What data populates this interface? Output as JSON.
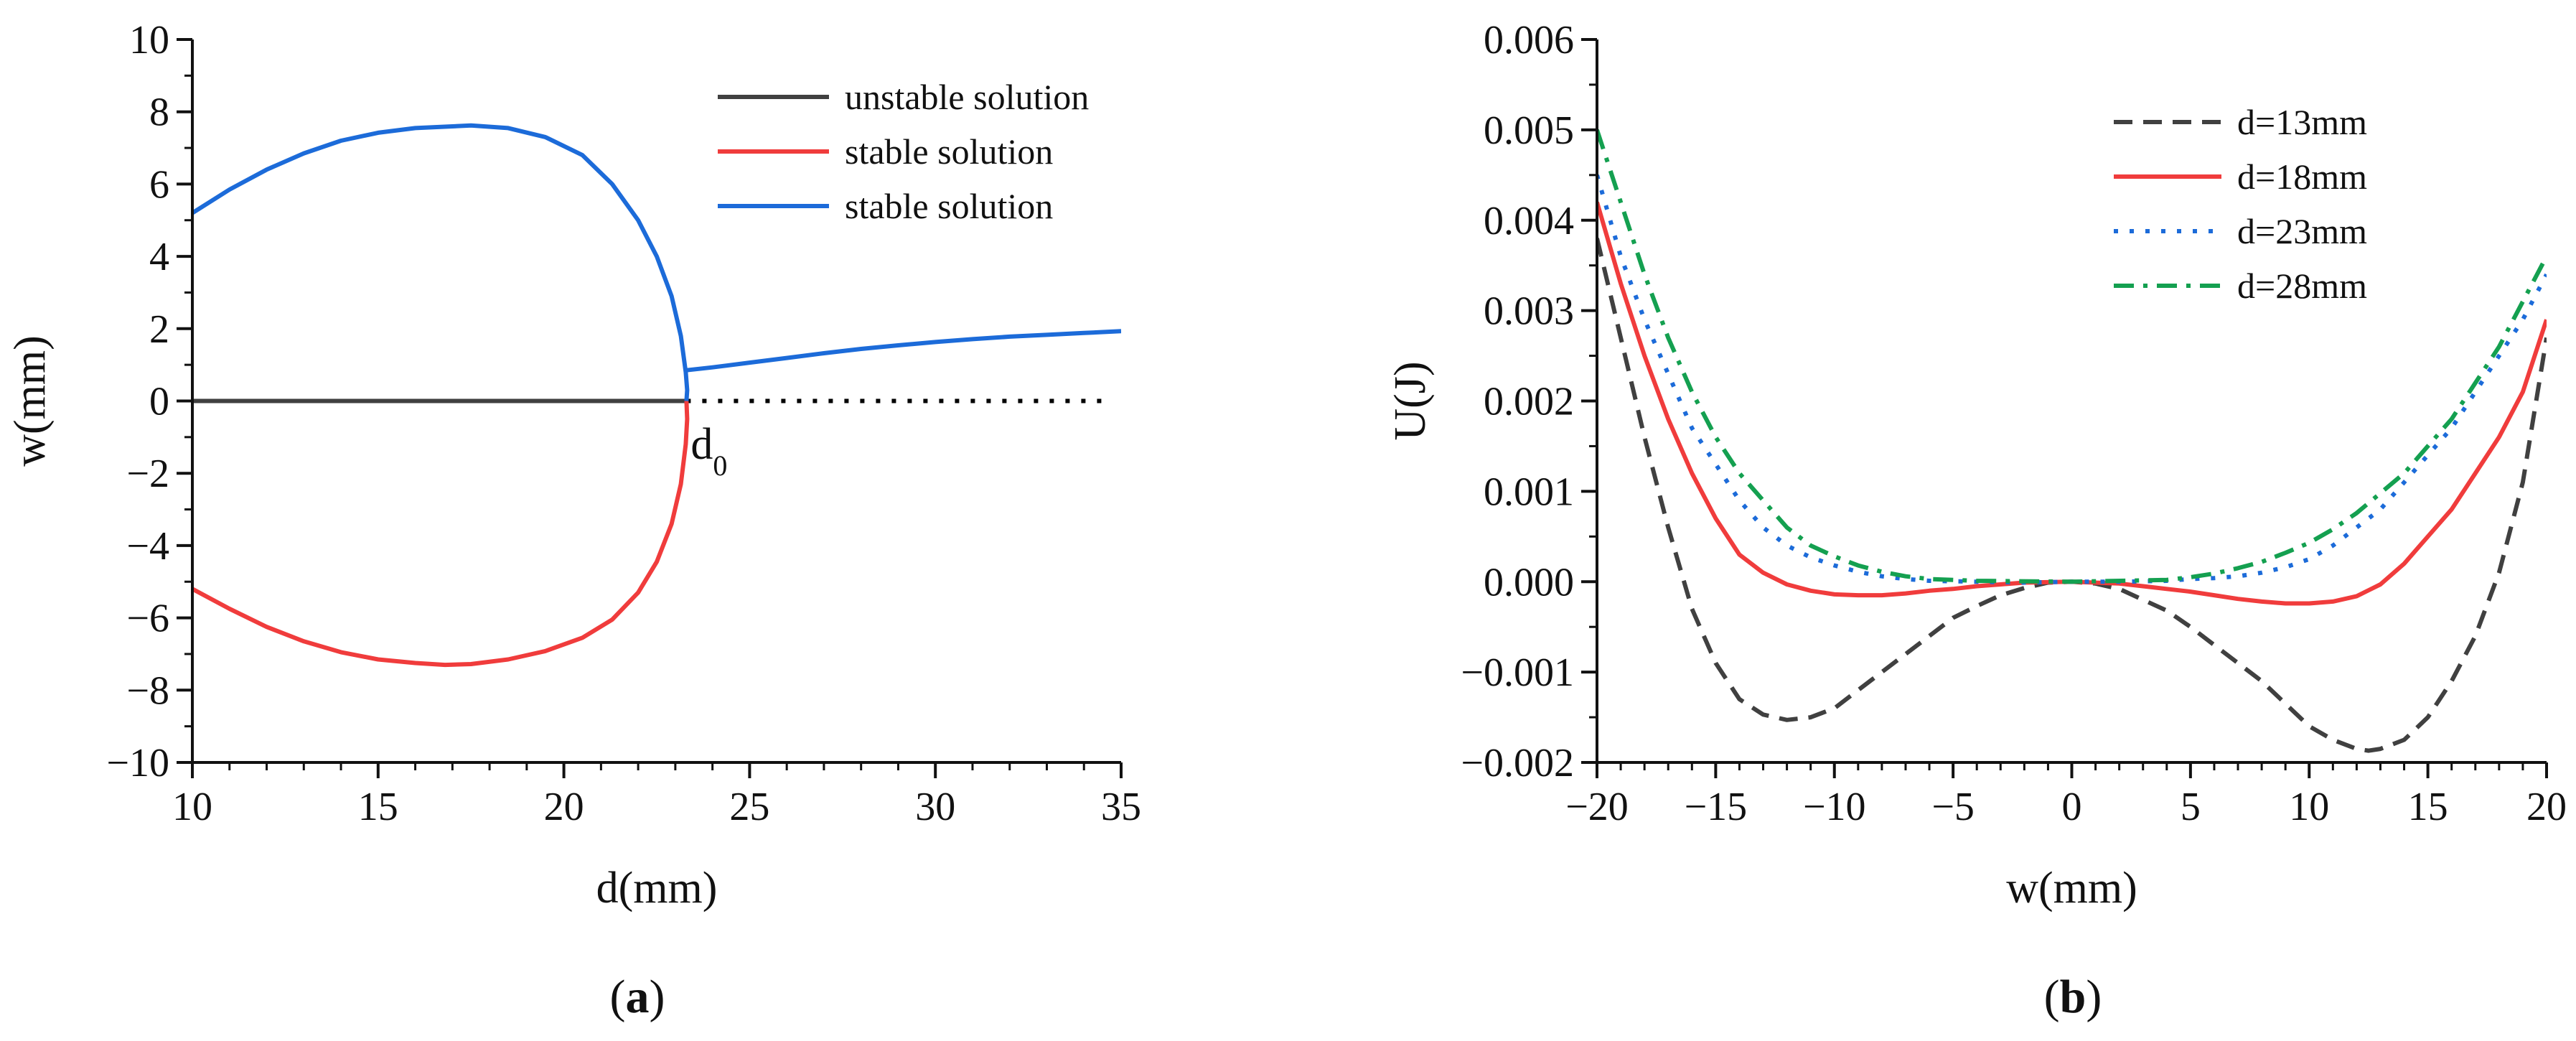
{
  "figure": {
    "panel_a_open": "(",
    "panel_a_letter": "a",
    "panel_a_close": ")",
    "panel_b_open": "(",
    "panel_b_letter": "b",
    "panel_b_close": ")"
  },
  "chart_data": [
    {
      "id": "a",
      "type": "line",
      "title": "",
      "xlabel": "d(mm)",
      "ylabel": "w(mm)",
      "xlim": [
        10,
        35
      ],
      "ylim": [
        -10,
        10
      ],
      "xticks": [
        10,
        15,
        20,
        25,
        30,
        35
      ],
      "yticks": [
        -10,
        -8,
        -6,
        -4,
        -2,
        0,
        2,
        4,
        6,
        8,
        10
      ],
      "grid": false,
      "legend_position": "top-right",
      "annotation": {
        "text": "d",
        "subscript": "0",
        "x": 23.3,
        "y": -1.2
      },
      "series": [
        {
          "name": "unstable solution",
          "color": "#404040",
          "style": "solid",
          "points": [
            [
              10,
              0
            ],
            [
              23.3,
              0
            ]
          ]
        },
        {
          "name": "",
          "color": "#000000",
          "style": "dotted",
          "points": [
            [
              23.3,
              0
            ],
            [
              34.6,
              0
            ]
          ]
        },
        {
          "name": "stable solution",
          "color": "#f03c3c",
          "style": "solid",
          "points": [
            [
              10,
              -5.2
            ],
            [
              11,
              -5.75
            ],
            [
              12,
              -6.25
            ],
            [
              13,
              -6.65
            ],
            [
              14,
              -6.95
            ],
            [
              15,
              -7.15
            ],
            [
              16,
              -7.25
            ],
            [
              16.8,
              -7.3
            ],
            [
              17.5,
              -7.28
            ],
            [
              18.5,
              -7.15
            ],
            [
              19.5,
              -6.92
            ],
            [
              20.5,
              -6.55
            ],
            [
              21.3,
              -6.05
            ],
            [
              22,
              -5.3
            ],
            [
              22.5,
              -4.45
            ],
            [
              22.9,
              -3.4
            ],
            [
              23.15,
              -2.3
            ],
            [
              23.28,
              -1.2
            ],
            [
              23.32,
              -0.5
            ],
            [
              23.3,
              0
            ]
          ]
        },
        {
          "name": "stable solution",
          "color": "#1c6bd9",
          "style": "solid",
          "points": [
            [
              10,
              5.2
            ],
            [
              11,
              5.85
            ],
            [
              12,
              6.4
            ],
            [
              13,
              6.85
            ],
            [
              14,
              7.2
            ],
            [
              15,
              7.42
            ],
            [
              16,
              7.55
            ],
            [
              17.5,
              7.62
            ],
            [
              18.5,
              7.55
            ],
            [
              19.5,
              7.3
            ],
            [
              20.5,
              6.8
            ],
            [
              21.3,
              6.0
            ],
            [
              22,
              5.0
            ],
            [
              22.5,
              4.0
            ],
            [
              22.9,
              2.9
            ],
            [
              23.15,
              1.8
            ],
            [
              23.28,
              0.8
            ],
            [
              23.32,
              0.3
            ],
            [
              23.3,
              0
            ]
          ]
        },
        {
          "name": "",
          "color": "#1c6bd9",
          "style": "solid",
          "points": [
            [
              23.3,
              0.85
            ],
            [
              24,
              0.93
            ],
            [
              25,
              1.06
            ],
            [
              26,
              1.19
            ],
            [
              27,
              1.32
            ],
            [
              28,
              1.44
            ],
            [
              29,
              1.54
            ],
            [
              30,
              1.63
            ],
            [
              31,
              1.71
            ],
            [
              32,
              1.78
            ],
            [
              33,
              1.83
            ],
            [
              34,
              1.88
            ],
            [
              35,
              1.93
            ]
          ]
        }
      ]
    },
    {
      "id": "b",
      "type": "line",
      "title": "",
      "xlabel": "w(mm)",
      "ylabel": "U(J)",
      "xlim": [
        -20,
        20
      ],
      "ylim": [
        -0.002,
        0.006
      ],
      "xticks": [
        -20,
        -15,
        -10,
        -5,
        0,
        5,
        10,
        15,
        20
      ],
      "yticks": [
        -0.002,
        -0.001,
        0.0,
        0.001,
        0.002,
        0.003,
        0.004,
        0.005,
        0.006
      ],
      "grid": false,
      "legend_position": "top-right",
      "series": [
        {
          "name": "d=13mm",
          "color": "#404040",
          "style": "dashed",
          "points": [
            [
              -20,
              0.0038
            ],
            [
              -19,
              0.0027
            ],
            [
              -18,
              0.0016
            ],
            [
              -17,
              0.0006
            ],
            [
              -16,
              -0.0003
            ],
            [
              -15,
              -0.0009
            ],
            [
              -14,
              -0.0013
            ],
            [
              -13,
              -0.00147
            ],
            [
              -12,
              -0.00153
            ],
            [
              -11,
              -0.0015
            ],
            [
              -10,
              -0.0014
            ],
            [
              -9,
              -0.0012
            ],
            [
              -8,
              -0.001
            ],
            [
              -7,
              -0.0008
            ],
            [
              -6,
              -0.0006
            ],
            [
              -5,
              -0.0004
            ],
            [
              -4,
              -0.00027
            ],
            [
              -3,
              -0.00015
            ],
            [
              -2,
              -7e-05
            ],
            [
              -1,
              -1e-05
            ],
            [
              0,
              0
            ],
            [
              1,
              -2e-05
            ],
            [
              2,
              -8e-05
            ],
            [
              3,
              -0.0002
            ],
            [
              4,
              -0.00032
            ],
            [
              5,
              -0.0005
            ],
            [
              6,
              -0.0007
            ],
            [
              7,
              -0.0009
            ],
            [
              8,
              -0.0011
            ],
            [
              9,
              -0.00135
            ],
            [
              10,
              -0.0016
            ],
            [
              11,
              -0.00175
            ],
            [
              12,
              -0.00185
            ],
            [
              12.5,
              -0.00187
            ],
            [
              13,
              -0.00185
            ],
            [
              14,
              -0.00175
            ],
            [
              15,
              -0.0015
            ],
            [
              16,
              -0.0011
            ],
            [
              17,
              -0.0006
            ],
            [
              18,
              0.0001
            ],
            [
              19,
              0.0011
            ],
            [
              20,
              0.0027
            ]
          ]
        },
        {
          "name": "d=18mm",
          "color": "#f03c3c",
          "style": "solid",
          "points": [
            [
              -20,
              0.0042
            ],
            [
              -19,
              0.0033
            ],
            [
              -18,
              0.0025
            ],
            [
              -17,
              0.0018
            ],
            [
              -16,
              0.0012
            ],
            [
              -15,
              0.0007
            ],
            [
              -14,
              0.0003
            ],
            [
              -13,
              0.0001
            ],
            [
              -12,
              -3e-05
            ],
            [
              -11,
              -0.0001
            ],
            [
              -10,
              -0.00014
            ],
            [
              -9,
              -0.00015
            ],
            [
              -8,
              -0.00015
            ],
            [
              -7,
              -0.00013
            ],
            [
              -6,
              -0.0001
            ],
            [
              -5,
              -8e-05
            ],
            [
              -4,
              -5e-05
            ],
            [
              -3,
              -3e-05
            ],
            [
              -2,
              -1e-05
            ],
            [
              0,
              0
            ],
            [
              2,
              -2e-05
            ],
            [
              3,
              -5e-05
            ],
            [
              4,
              -8e-05
            ],
            [
              5,
              -0.00011
            ],
            [
              6,
              -0.00015
            ],
            [
              7,
              -0.00019
            ],
            [
              8,
              -0.00022
            ],
            [
              9,
              -0.00024
            ],
            [
              10,
              -0.00024
            ],
            [
              11,
              -0.00022
            ],
            [
              12,
              -0.00016
            ],
            [
              13,
              -3e-05
            ],
            [
              14,
              0.0002
            ],
            [
              15,
              0.0005
            ],
            [
              16,
              0.0008
            ],
            [
              17,
              0.0012
            ],
            [
              18,
              0.0016
            ],
            [
              19,
              0.0021
            ],
            [
              20,
              0.0029
            ]
          ]
        },
        {
          "name": "d=23mm",
          "color": "#1c6bd9",
          "style": "dotted",
          "points": [
            [
              -20,
              0.0045
            ],
            [
              -19,
              0.0036
            ],
            [
              -18,
              0.0029
            ],
            [
              -17,
              0.0023
            ],
            [
              -16,
              0.0017
            ],
            [
              -15,
              0.0013
            ],
            [
              -14,
              0.0009
            ],
            [
              -13,
              0.0006
            ],
            [
              -12,
              0.0004
            ],
            [
              -11,
              0.00027
            ],
            [
              -10,
              0.00018
            ],
            [
              -9,
              0.00011
            ],
            [
              -8,
              6e-05
            ],
            [
              -7,
              3e-05
            ],
            [
              -6,
              1e-05
            ],
            [
              -4,
              0
            ],
            [
              -2,
              -1e-05
            ],
            [
              0,
              0
            ],
            [
              2,
              0
            ],
            [
              4,
              1e-05
            ],
            [
              5,
              3e-05
            ],
            [
              6,
              4e-05
            ],
            [
              7,
              6e-05
            ],
            [
              8,
              0.0001
            ],
            [
              9,
              0.00016
            ],
            [
              10,
              0.00025
            ],
            [
              11,
              0.0004
            ],
            [
              12,
              0.0006
            ],
            [
              13,
              0.0008
            ],
            [
              14,
              0.0011
            ],
            [
              15,
              0.0014
            ],
            [
              16,
              0.0017
            ],
            [
              17,
              0.0021
            ],
            [
              18,
              0.0025
            ],
            [
              19,
              0.0029
            ],
            [
              20,
              0.0034
            ]
          ]
        },
        {
          "name": "d=28mm",
          "color": "#14a050",
          "style": "dashdot",
          "points": [
            [
              -20,
              0.005
            ],
            [
              -19,
              0.0042
            ],
            [
              -18,
              0.0034
            ],
            [
              -17,
              0.0027
            ],
            [
              -16,
              0.0021
            ],
            [
              -15,
              0.0016
            ],
            [
              -14,
              0.0012
            ],
            [
              -13,
              0.0009
            ],
            [
              -12,
              0.0006
            ],
            [
              -11,
              0.0004
            ],
            [
              -10,
              0.00028
            ],
            [
              -9,
              0.00018
            ],
            [
              -8,
              0.00011
            ],
            [
              -7,
              6e-05
            ],
            [
              -6,
              3e-05
            ],
            [
              -4,
              1e-05
            ],
            [
              0,
              0
            ],
            [
              4,
              2e-05
            ],
            [
              5,
              5e-05
            ],
            [
              6,
              9e-05
            ],
            [
              7,
              0.00015
            ],
            [
              8,
              0.00022
            ],
            [
              9,
              0.00032
            ],
            [
              10,
              0.00043
            ],
            [
              11,
              0.00058
            ],
            [
              12,
              0.00076
            ],
            [
              13,
              0.00098
            ],
            [
              14,
              0.0012
            ],
            [
              15,
              0.0015
            ],
            [
              16,
              0.0018
            ],
            [
              17,
              0.0022
            ],
            [
              18,
              0.0026
            ],
            [
              19,
              0.0031
            ],
            [
              20,
              0.0036
            ]
          ]
        }
      ]
    }
  ]
}
